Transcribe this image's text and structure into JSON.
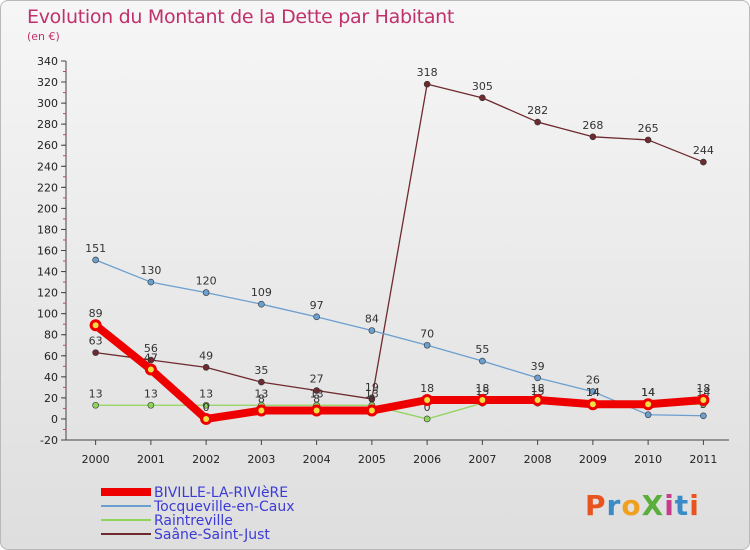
{
  "header": {
    "title": "Evolution du Montant de la Dette par Habitant",
    "subtitle": "(en €)"
  },
  "logo": {
    "text": "ProXiti",
    "colors": [
      "#e8531f",
      "#3a8bc8",
      "#f0a020",
      "#5aae3c",
      "#c83a8a",
      "#3a8bc8",
      "#e8531f"
    ]
  },
  "chart_data": {
    "type": "line",
    "x": [
      "2000",
      "2001",
      "2002",
      "2003",
      "2004",
      "2005",
      "2006",
      "2007",
      "2008",
      "2009",
      "2010",
      "2011"
    ],
    "ylim": [
      -20,
      340
    ],
    "yticks": [
      -20,
      0,
      20,
      40,
      60,
      80,
      100,
      120,
      140,
      160,
      180,
      200,
      220,
      240,
      260,
      280,
      300,
      320,
      340
    ],
    "grid": false,
    "legend_position": "bottom-left",
    "series": [
      {
        "name": "Saâne-Saint-Just",
        "color": "#6e2a2e",
        "values": [
          63,
          56,
          49,
          35,
          27,
          19,
          318,
          305,
          282,
          268,
          265,
          244
        ],
        "labels": [
          "63",
          "56",
          "49",
          "35",
          "27",
          "19",
          "318",
          "305",
          "282",
          "268",
          "265",
          "244"
        ]
      },
      {
        "name": "Tocqueville-en-Caux",
        "color": "#6b9fd0",
        "values": [
          151,
          130,
          120,
          109,
          97,
          84,
          70,
          55,
          39,
          26,
          4,
          3
        ],
        "labels": [
          "151",
          "130",
          "120",
          "109",
          "97",
          "84",
          "70",
          "55",
          "39",
          "26",
          "4",
          "3"
        ]
      },
      {
        "name": "Raintreville",
        "color": "#8ed45a",
        "values": [
          13,
          13,
          13,
          13,
          13,
          13,
          0,
          15,
          15,
          14,
          14,
          14
        ],
        "labels": [
          "13",
          "13",
          "13",
          "13",
          "13",
          "13",
          "0",
          "15",
          "15",
          "14",
          "14",
          "14"
        ]
      },
      {
        "name": "BIVILLE-LA-RIVIèRE",
        "color": "#ee0000",
        "values": [
          89,
          47,
          0,
          8,
          8,
          8,
          18,
          18,
          18,
          14,
          14,
          18
        ],
        "labels": [
          "89",
          "47",
          "0",
          "8",
          "8",
          "8",
          "18",
          "18",
          "18",
          "14",
          "14",
          "18"
        ]
      }
    ]
  }
}
